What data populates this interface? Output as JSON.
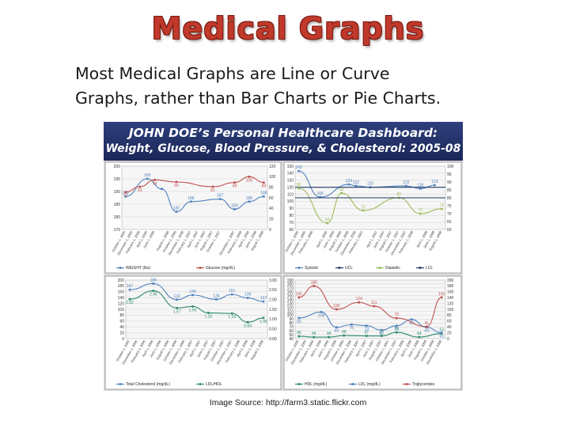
{
  "slide": {
    "title": "Medical Graphs",
    "body_line_1": "Most Medical Graphs are Line or Curve",
    "body_line_2": "Graphs, rather than Bar Charts or Pie Charts.",
    "image_source": "Image Source: http://farm3.static.flickr.com"
  },
  "dashboard": {
    "title_line_1": "JOHN DOE’s Personal Healthcare Dashboard:",
    "title_line_2": "Weight, Glucose, Blood Pressure, & Cholesterol: 2005-08"
  },
  "colors": {
    "title_red": "#c0392b",
    "header_navy": "#1b2758",
    "blue": "#4f81bd",
    "red": "#c0504d",
    "green": "#9bbb59",
    "teal": "#2e8b6e",
    "dark_navy": "#1f3864",
    "panel_bg": "#dcdcdc"
  },
  "chart_data": [
    {
      "type": "line",
      "x": [
        "October 1, 2005",
        "December 1, 2005",
        "February 1, 2006",
        "April 1, 2006",
        "June 1, 2006",
        "August 1, 2006",
        "October 1, 2006",
        "December 1, 2006",
        "February 1, 2007",
        "April 1, 2007",
        "June 1, 2007",
        "August 1, 2007",
        "October 1, 2007",
        "December 1, 2007",
        "February 1, 2008",
        "April 1, 2008",
        "June 1, 2008",
        "August 1, 2008"
      ],
      "ylim_left": [
        175,
        200
      ],
      "yticks_left": [
        175,
        180,
        185,
        190,
        195,
        200
      ],
      "ylim_right": [
        0,
        120
      ],
      "yticks_right": [
        0,
        20,
        40,
        60,
        80,
        100,
        120
      ],
      "series": [
        {
          "name": "WEIGHT (lbs)",
          "axis": "left",
          "color": "#4f81bd",
          "points": [
            [
              0,
              188
            ],
            [
              3,
              195
            ],
            [
              5,
              191
            ],
            [
              7,
              182
            ],
            [
              9,
              186
            ],
            [
              13,
              187
            ],
            [
              15,
              183
            ],
            [
              17,
              186
            ],
            [
              19,
              188
            ]
          ],
          "labels": [
            "188",
            "195",
            "",
            "182",
            "186",
            "187",
            "183",
            "186",
            "188"
          ]
        },
        {
          "name": "Glucose (mg/dL)",
          "axis": "right",
          "color": "#c0504d",
          "points": [
            [
              0,
              71
            ],
            [
              2,
              81
            ],
            [
              4,
              94
            ],
            [
              7,
              90
            ],
            [
              12,
              81
            ],
            [
              15,
              89
            ],
            [
              17,
              100
            ],
            [
              19,
              89
            ]
          ],
          "labels": [
            "71",
            "81",
            "94",
            "90",
            "81",
            "89",
            "100",
            "89"
          ]
        }
      ],
      "x_count": 20
    },
    {
      "type": "line",
      "x": [
        "October 1, 2005",
        "December 1, 2005",
        "February 1, 2006",
        "April 1, 2006",
        "June 1, 2006",
        "August 1, 2006",
        "October 1, 2006",
        "December 1, 2006",
        "February 1, 2007",
        "April 1, 2007",
        "June 1, 2007",
        "August 1, 2007",
        "October 1, 2007",
        "December 1, 2007",
        "February 1, 2008",
        "April 1, 2008",
        "June 1, 2008",
        "August 1, 2008"
      ],
      "ylim_left": [
        60,
        150
      ],
      "yticks_left": [
        60,
        70,
        80,
        90,
        100,
        110,
        120,
        130,
        140,
        150
      ],
      "ylim_right": [
        60,
        100
      ],
      "yticks_right": [
        60,
        65,
        70,
        75,
        80,
        85,
        90,
        95,
        100
      ],
      "series": [
        {
          "name": "Systolic",
          "axis": "left",
          "color": "#4f81bd",
          "points": [
            [
              0,
              143
            ],
            [
              3,
              106
            ],
            [
              7,
              124
            ],
            [
              8,
              122
            ],
            [
              10,
              120
            ],
            [
              15,
              122
            ],
            [
              17,
              118
            ],
            [
              19,
              123
            ]
          ],
          "labels": [
            "143",
            "106",
            "124",
            "122",
            "120",
            "122",
            "118",
            "123"
          ]
        },
        {
          "name": "UCL",
          "axis": "left",
          "color": "#1f3864",
          "flat": 120,
          "labels": []
        },
        {
          "name": "Diastolic",
          "axis": "right",
          "color": "#9bbb59",
          "points": [
            [
              0,
              86
            ],
            [
              4,
              64
            ],
            [
              6,
              83
            ],
            [
              9,
              72
            ],
            [
              14,
              80
            ],
            [
              17,
              70
            ],
            [
              20,
              73
            ]
          ],
          "labels": [
            "86",
            "64",
            "83",
            "72",
            "80",
            "70",
            "73"
          ]
        },
        {
          "name": "LCL",
          "axis": "right",
          "color": "#1f3864",
          "flat": 80,
          "labels": []
        }
      ],
      "x_count": 21
    },
    {
      "type": "line",
      "x": [
        "October 1, 2005",
        "December 1, 2005",
        "February 1, 2006",
        "April 1, 2006",
        "June 1, 2006",
        "August 1, 2006",
        "October 1, 2006",
        "December 1, 2006",
        "February 1, 2007",
        "April 1, 2007",
        "June 1, 2007",
        "August 1, 2007",
        "October 1, 2007",
        "December 1, 2007",
        "February 1, 2008",
        "April 1, 2008",
        "June 1, 2008",
        "August 1, 2008"
      ],
      "ylim_left": [
        0,
        200
      ],
      "yticks_left": [
        0,
        20,
        40,
        60,
        80,
        100,
        120,
        140,
        160,
        180,
        200
      ],
      "ylim_right": [
        0.0,
        3.0
      ],
      "yticks_right": [
        "0.00",
        "0.50",
        "1.00",
        "1.50",
        "2.00",
        "2.50",
        "3.00"
      ],
      "series": [
        {
          "name": "Total Cholesterol (mg/dL)",
          "axis": "left",
          "color": "#4f81bd",
          "points": [
            [
              0,
              167
            ],
            [
              3,
              188
            ],
            [
              6,
              133
            ],
            [
              8,
              149
            ],
            [
              11,
              134
            ],
            [
              13,
              151
            ],
            [
              15,
              139
            ],
            [
              17,
              127
            ]
          ],
          "labels": [
            "167",
            "188",
            "133",
            "149",
            "134",
            "151",
            "139",
            "127"
          ]
        },
        {
          "name": "LDL/HDL",
          "axis": "right",
          "color": "#2e8b6e",
          "points": [
            [
              0,
              2.02
            ],
            [
              3,
              2.45
            ],
            [
              6,
              1.57
            ],
            [
              8,
              1.65
            ],
            [
              10,
              1.32
            ],
            [
              13,
              1.29
            ],
            [
              15,
              0.84
            ],
            [
              17,
              1.06
            ]
          ],
          "labels": [
            "2.02",
            "2.45",
            "1.57",
            "1.65",
            "1.32",
            "1.29",
            "0.84",
            "1.06"
          ]
        }
      ],
      "x_count": 18
    },
    {
      "type": "line",
      "x": [
        "October 1, 2005",
        "December 1, 2005",
        "February 1, 2006",
        "April 1, 2006",
        "June 1, 2006",
        "August 1, 2006",
        "October 1, 2006",
        "December 1, 2006",
        "February 1, 2007",
        "April 1, 2007",
        "June 1, 2007",
        "August 1, 2007",
        "October 1, 2007",
        "December 1, 2007",
        "February 1, 2008",
        "April 1, 2008",
        "June 1, 2008",
        "August 1, 2008",
        "October 1, 2008",
        "December 1, 2008"
      ],
      "ylim_left": [
        40,
        190
      ],
      "yticks_left": [
        40,
        50,
        60,
        70,
        80,
        90,
        100,
        110,
        120,
        130,
        140,
        150,
        160,
        170,
        180,
        190
      ],
      "ylim_right": [
        0,
        200
      ],
      "yticks_right": [
        0,
        20,
        40,
        60,
        80,
        100,
        120,
        140,
        160,
        180,
        200
      ],
      "series": [
        {
          "name": "HDL (mg/dL)",
          "axis": "left",
          "color": "#2e8b6e",
          "points": [
            [
              0,
              46
            ],
            [
              2,
              44
            ],
            [
              4,
              44
            ],
            [
              6,
              48
            ],
            [
              9,
              47
            ],
            [
              11,
              47
            ],
            [
              13,
              56
            ],
            [
              16,
              44
            ],
            [
              19,
              53
            ]
          ],
          "labels": [
            "46",
            "44",
            "44",
            "48",
            "47",
            "47",
            "56",
            "44",
            "53"
          ]
        },
        {
          "name": "LDL (mg/dL)",
          "axis": "left",
          "color": "#4f81bd",
          "points": [
            [
              0,
              93
            ],
            [
              3,
              108
            ],
            [
              5,
              69
            ],
            [
              7,
              76
            ],
            [
              9,
              73
            ],
            [
              11,
              62
            ],
            [
              13,
              73
            ],
            [
              15,
              89
            ],
            [
              17,
              69
            ],
            [
              19,
              55
            ]
          ],
          "labels": [
            "93",
            "108",
            "69",
            "76",
            "73",
            "62",
            "73",
            "89",
            "69",
            "55"
          ]
        },
        {
          "name": "Triglycerides",
          "axis": "right",
          "color": "#c0504d",
          "points": [
            [
              0,
              141
            ],
            [
              2,
              180
            ],
            [
              5,
              100
            ],
            [
              8,
              124
            ],
            [
              10,
              111
            ],
            [
              13,
              70
            ],
            [
              17,
              41
            ],
            [
              19,
              141
            ]
          ],
          "labels": [
            "141",
            "180",
            "100",
            "124",
            "111",
            "70",
            "41",
            "141"
          ]
        }
      ],
      "x_count": 20
    }
  ]
}
